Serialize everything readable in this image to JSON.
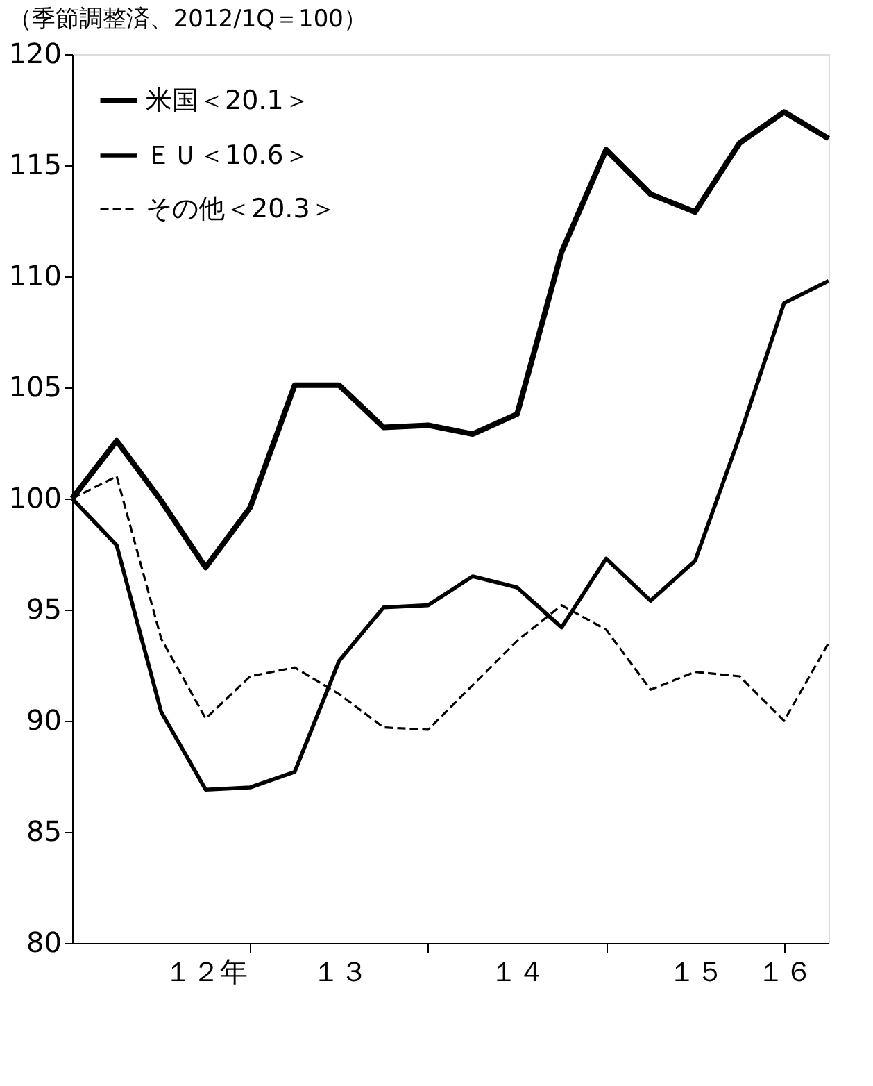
{
  "chart_data": {
    "type": "line",
    "title": "（季節調整済、2012/1Q＝100）",
    "categories": [
      null,
      null,
      null,
      "１２年",
      null,
      null,
      "１３",
      null,
      null,
      null,
      "１４",
      null,
      null,
      null,
      "１５",
      null,
      "１６",
      null
    ],
    "ylim": [
      80,
      120
    ],
    "yticks": [
      80,
      85,
      90,
      95,
      100,
      105,
      110,
      115,
      120
    ],
    "grid": false,
    "legend": "top left",
    "marker": "none",
    "series": [
      {
        "name": "米国＜20.1＞",
        "color": "#000000",
        "line_style": "solid",
        "values": [
          100,
          102.6,
          99.9,
          96.9,
          99.6,
          105.1,
          105.1,
          103.2,
          103.3,
          102.9,
          103.8,
          111.1,
          115.7,
          113.7,
          112.9,
          116.0,
          117.4,
          116.2
        ]
      },
      {
        "name": "ＥＵ＜10.6＞",
        "color": "#000000",
        "line_style": "solid",
        "values": [
          100,
          97.9,
          90.4,
          86.9,
          87.0,
          87.7,
          92.7,
          95.1,
          95.2,
          96.5,
          96.0,
          94.2,
          97.3,
          95.4,
          97.2,
          102.8,
          108.8,
          109.8
        ]
      },
      {
        "name": "その他＜20.3＞",
        "color": "#000000",
        "line_style": "dashed",
        "values": [
          100,
          101.0,
          93.7,
          90.1,
          92.0,
          92.4,
          91.2,
          89.7,
          89.6,
          91.6,
          93.6,
          95.2,
          94.1,
          91.4,
          92.2,
          92.0,
          90.0,
          93.5
        ]
      }
    ]
  }
}
